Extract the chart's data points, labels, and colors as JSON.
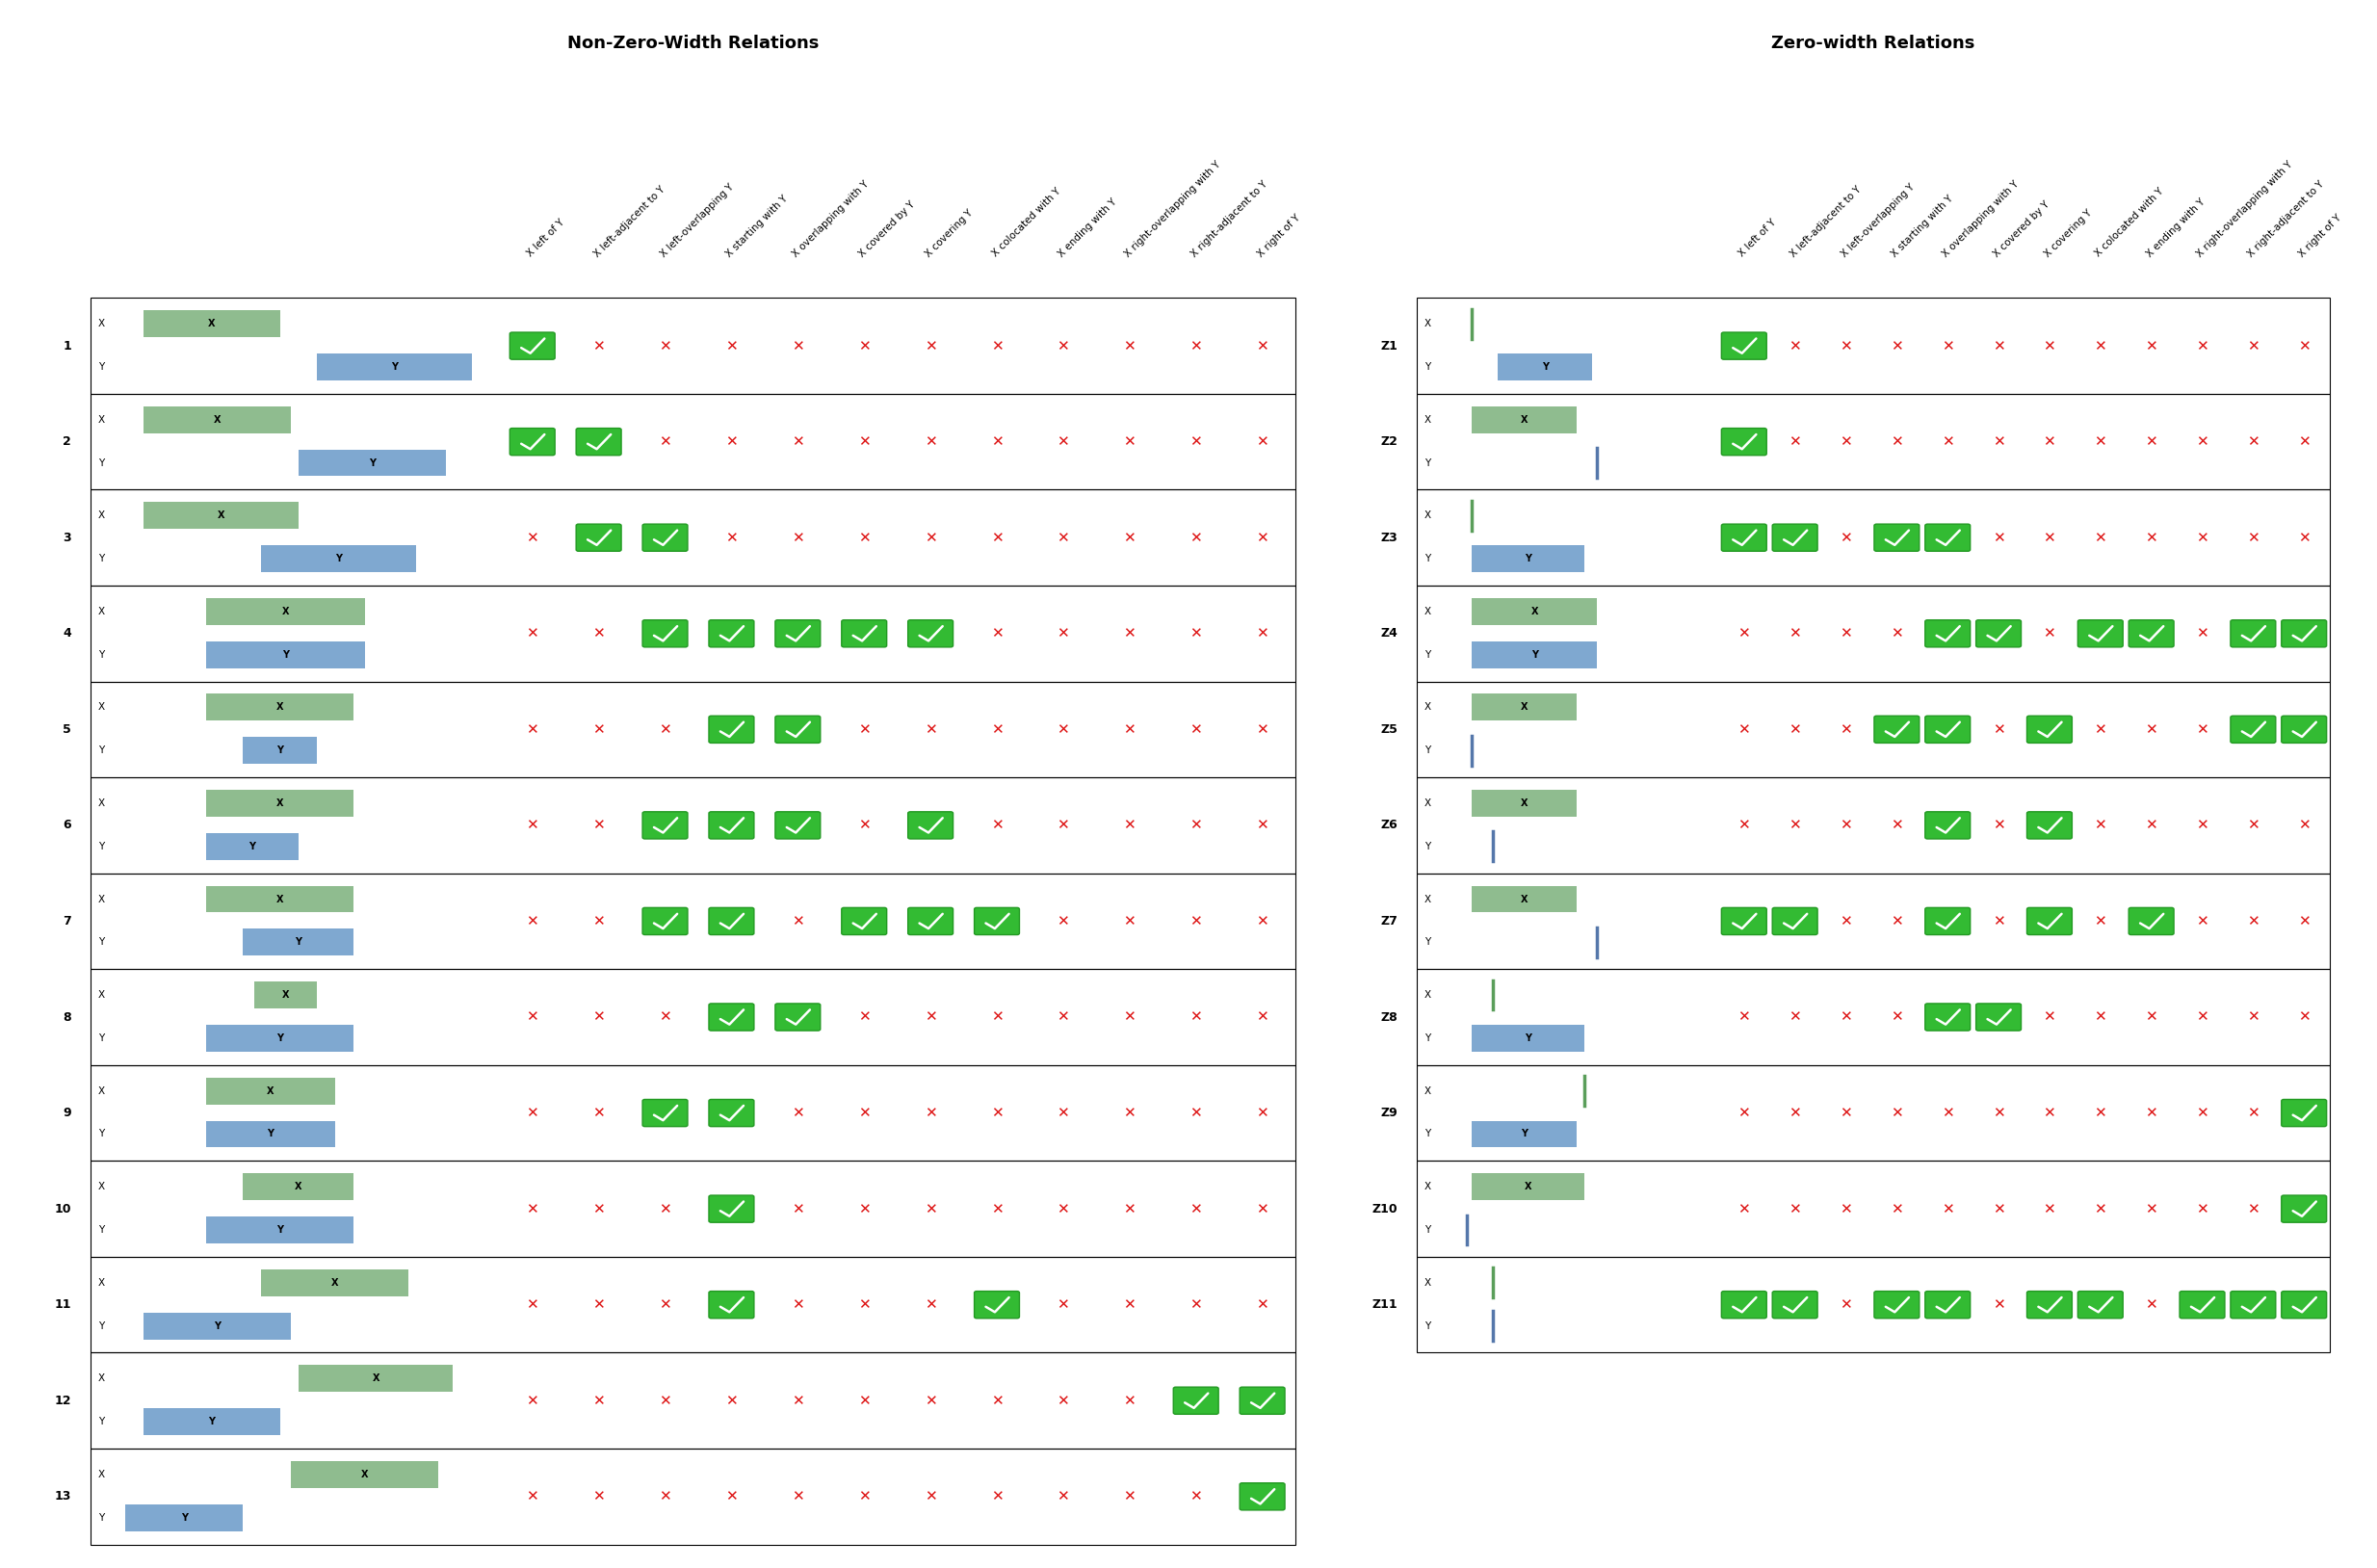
{
  "left_title": "Non-Zero-Width Relations",
  "right_title": "Zero-width Relations",
  "col_headers_nzw": [
    "X left of Y",
    "X left-adjacent to Y",
    "X left-overlapping Y",
    "X starting with Y",
    "X overlapping with Y",
    "X covered by Y",
    "X covering Y",
    "X colocated with Y",
    "X ending with Y",
    "X right-overlapping with Y",
    "X right-adjacent to Y",
    "X right of Y"
  ],
  "col_headers_zw": [
    "X left of Y",
    "X left-adjacent to Y",
    "X left-overlapping Y",
    "X starting with Y",
    "X overlapping with Y",
    "X covered by Y",
    "X covering Y",
    "X colocated with Y",
    "X ending with Y",
    "X right-overlapping with Y",
    "X right-adjacent to Y",
    "X right of Y"
  ],
  "row_labels_nzw": [
    "1",
    "2",
    "3",
    "4",
    "5",
    "6",
    "7",
    "8",
    "9",
    "10",
    "11",
    "12",
    "13"
  ],
  "row_labels_zw": [
    "Z1",
    "Z2",
    "Z3",
    "Z4",
    "Z5",
    "Z6",
    "Z7",
    "Z8",
    "Z9",
    "Z10",
    "Z11"
  ],
  "nzw_checks": [
    [
      1,
      0,
      0,
      0,
      0,
      0,
      0,
      0,
      0,
      0,
      0,
      0
    ],
    [
      1,
      1,
      0,
      0,
      0,
      0,
      0,
      0,
      0,
      0,
      0,
      0
    ],
    [
      0,
      1,
      1,
      0,
      0,
      0,
      0,
      0,
      0,
      0,
      0,
      0
    ],
    [
      0,
      0,
      1,
      1,
      1,
      1,
      1,
      0,
      0,
      0,
      0,
      0
    ],
    [
      0,
      0,
      0,
      1,
      1,
      0,
      0,
      0,
      0,
      0,
      0,
      0
    ],
    [
      0,
      0,
      1,
      1,
      1,
      0,
      1,
      0,
      0,
      0,
      0,
      0
    ],
    [
      0,
      0,
      1,
      1,
      0,
      1,
      1,
      1,
      0,
      0,
      0,
      0
    ],
    [
      0,
      0,
      0,
      1,
      1,
      0,
      0,
      0,
      0,
      0,
      0,
      0
    ],
    [
      0,
      0,
      1,
      1,
      0,
      0,
      0,
      0,
      0,
      0,
      0,
      0
    ],
    [
      0,
      0,
      0,
      1,
      0,
      0,
      0,
      0,
      0,
      0,
      0,
      0
    ],
    [
      0,
      0,
      0,
      1,
      0,
      0,
      0,
      1,
      0,
      0,
      0,
      0
    ],
    [
      0,
      0,
      0,
      0,
      0,
      0,
      0,
      0,
      0,
      0,
      1,
      1
    ],
    [
      0,
      0,
      0,
      0,
      0,
      0,
      0,
      0,
      0,
      0,
      0,
      1
    ]
  ],
  "zw_checks": [
    [
      1,
      0,
      0,
      0,
      0,
      0,
      0,
      0,
      0,
      0,
      0,
      0
    ],
    [
      1,
      0,
      0,
      0,
      0,
      0,
      0,
      0,
      0,
      0,
      0,
      0
    ],
    [
      1,
      1,
      0,
      1,
      1,
      0,
      0,
      0,
      0,
      0,
      0,
      0
    ],
    [
      0,
      0,
      0,
      0,
      1,
      1,
      0,
      1,
      1,
      0,
      1,
      1
    ],
    [
      0,
      0,
      0,
      1,
      1,
      0,
      1,
      0,
      0,
      0,
      1,
      1
    ],
    [
      0,
      0,
      0,
      0,
      1,
      0,
      1,
      0,
      0,
      0,
      0,
      0
    ],
    [
      1,
      1,
      0,
      0,
      1,
      0,
      1,
      0,
      1,
      0,
      0,
      0
    ],
    [
      0,
      0,
      0,
      0,
      1,
      1,
      0,
      0,
      0,
      0,
      0,
      0
    ],
    [
      0,
      0,
      0,
      0,
      0,
      0,
      0,
      0,
      0,
      0,
      0,
      1
    ],
    [
      0,
      0,
      0,
      0,
      0,
      0,
      0,
      0,
      0,
      0,
      0,
      1
    ],
    [
      1,
      1,
      0,
      1,
      1,
      0,
      1,
      1,
      0,
      1,
      1,
      1
    ]
  ],
  "green_bar_color": "#8fbc8f",
  "blue_bar_color": "#7fa8d0",
  "green_line_color": "#5a9e5a",
  "blue_line_color": "#5577aa",
  "background": "#ffffff",
  "nzw_bars": [
    {
      "X": [
        0.08,
        0.45
      ],
      "Y": [
        0.55,
        0.97
      ]
    },
    {
      "X": [
        0.08,
        0.48
      ],
      "Y": [
        0.5,
        0.9
      ]
    },
    {
      "X": [
        0.08,
        0.5
      ],
      "Y": [
        0.4,
        0.82
      ]
    },
    {
      "X": [
        0.25,
        0.68
      ],
      "Y": [
        0.25,
        0.68
      ]
    },
    {
      "X": [
        0.25,
        0.65
      ],
      "Y": [
        0.35,
        0.55
      ]
    },
    {
      "X": [
        0.25,
        0.65
      ],
      "Y": [
        0.25,
        0.5
      ]
    },
    {
      "X": [
        0.25,
        0.65
      ],
      "Y": [
        0.35,
        0.65
      ]
    },
    {
      "X": [
        0.38,
        0.55
      ],
      "Y": [
        0.25,
        0.65
      ]
    },
    {
      "X": [
        0.25,
        0.6
      ],
      "Y": [
        0.25,
        0.6
      ]
    },
    {
      "X": [
        0.35,
        0.65
      ],
      "Y": [
        0.25,
        0.65
      ]
    },
    {
      "X": [
        0.4,
        0.8
      ],
      "Y": [
        0.08,
        0.48
      ]
    },
    {
      "X": [
        0.5,
        0.92
      ],
      "Y": [
        0.08,
        0.45
      ]
    },
    {
      "X": [
        0.48,
        0.88
      ],
      "Y": [
        0.03,
        0.35
      ]
    }
  ],
  "zw_bars": [
    {
      "X": [
        0.12,
        0.12
      ],
      "Y": [
        0.22,
        0.58
      ]
    },
    {
      "X": [
        0.12,
        0.52
      ],
      "Y": [
        0.6,
        0.6
      ]
    },
    {
      "X": [
        0.12,
        0.12
      ],
      "Y": [
        0.12,
        0.55
      ]
    },
    {
      "X": [
        0.12,
        0.6
      ],
      "Y": [
        0.12,
        0.6
      ]
    },
    {
      "X": [
        0.12,
        0.52
      ],
      "Y": [
        0.12,
        0.12
      ]
    },
    {
      "X": [
        0.12,
        0.52
      ],
      "Y": [
        0.2,
        0.2
      ]
    },
    {
      "X": [
        0.12,
        0.52
      ],
      "Y": [
        0.6,
        0.6
      ]
    },
    {
      "X": [
        0.2,
        0.2
      ],
      "Y": [
        0.12,
        0.55
      ]
    },
    {
      "X": [
        0.55,
        0.55
      ],
      "Y": [
        0.12,
        0.52
      ]
    },
    {
      "X": [
        0.12,
        0.55
      ],
      "Y": [
        0.1,
        0.1
      ]
    },
    {
      "X": [
        0.2,
        0.2
      ],
      "Y": [
        0.2,
        0.2
      ]
    }
  ]
}
